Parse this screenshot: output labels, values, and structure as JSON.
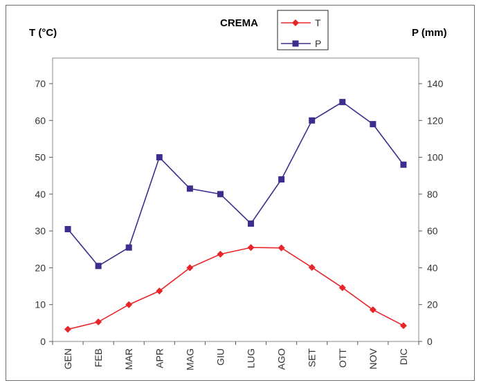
{
  "chart_data": {
    "type": "line",
    "title": "CREMA",
    "left_axis_label": "T (°C)",
    "right_axis_label": "P (mm)",
    "categories": [
      "GEN",
      "FEB",
      "MAR",
      "APR",
      "MAG",
      "GIU",
      "LUG",
      "AGO",
      "SET",
      "OTT",
      "NOV",
      "DIC"
    ],
    "left_ylim": [
      0,
      70
    ],
    "right_ylim": [
      0,
      140
    ],
    "left_ticks": [
      0,
      10,
      20,
      30,
      40,
      50,
      60,
      70
    ],
    "right_ticks": [
      0,
      20,
      40,
      60,
      80,
      100,
      120,
      140
    ],
    "legend_position": "top-center",
    "grid": false,
    "series": [
      {
        "name": "T",
        "axis": "left",
        "color": "#e8262a",
        "marker": "diamond",
        "values": [
          3.3,
          5.3,
          10.0,
          13.7,
          20.0,
          23.7,
          25.5,
          25.4,
          20.1,
          14.6,
          8.6,
          4.3
        ]
      },
      {
        "name": "P",
        "axis": "right",
        "color": "#3b2e8c",
        "marker": "square",
        "values": [
          61,
          41,
          51,
          100,
          83,
          80,
          64,
          88,
          120,
          130,
          118,
          96
        ]
      }
    ]
  }
}
